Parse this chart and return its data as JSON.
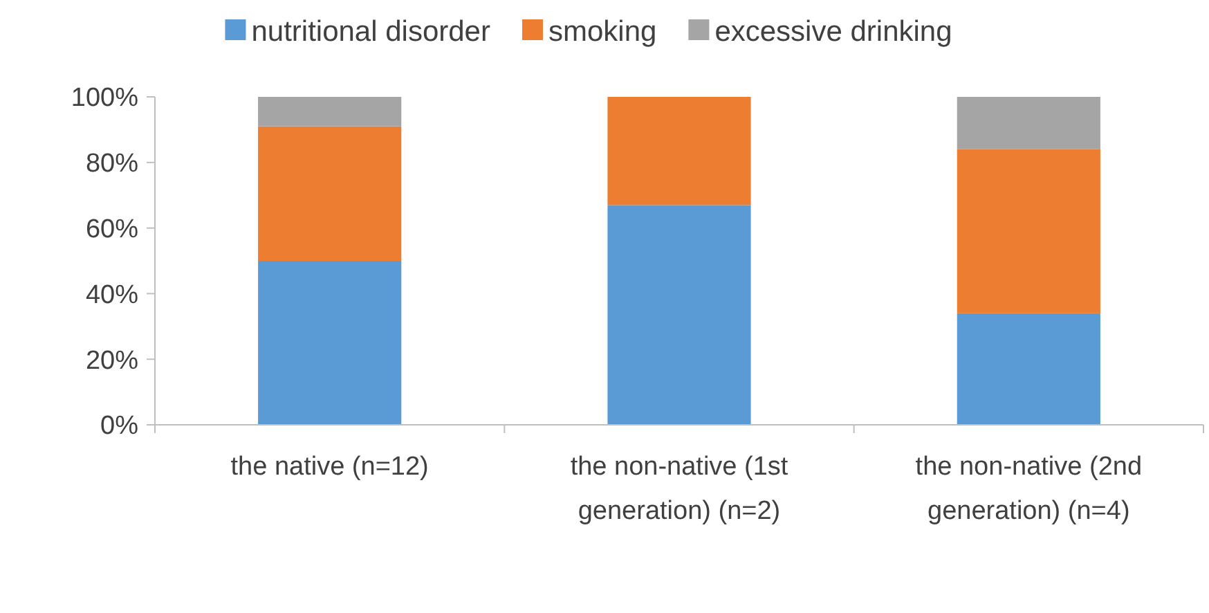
{
  "chart_data": {
    "type": "bar",
    "stacked": true,
    "categories": [
      "the native (n=12)",
      "the non-native (1st generation) (n=2)",
      "the non-native (2nd generation) (n=4)"
    ],
    "series": [
      {
        "name": "nutritional disorder",
        "color": "#5b9bd5",
        "values": [
          50,
          67,
          34
        ]
      },
      {
        "name": "smoking",
        "color": "#ed7d31",
        "values": [
          41,
          33,
          50
        ]
      },
      {
        "name": "excessive drinking",
        "color": "#a5a5a5",
        "values": [
          9,
          0,
          16
        ]
      }
    ],
    "ylim": [
      0,
      100
    ],
    "yticks": [
      {
        "value": 0,
        "label": "0%"
      },
      {
        "value": 20,
        "label": "20%"
      },
      {
        "value": 40,
        "label": "40%"
      },
      {
        "value": 60,
        "label": "60%"
      },
      {
        "value": 80,
        "label": "80%"
      },
      {
        "value": 100,
        "label": "100%"
      }
    ],
    "legend": "top",
    "grid": false
  }
}
